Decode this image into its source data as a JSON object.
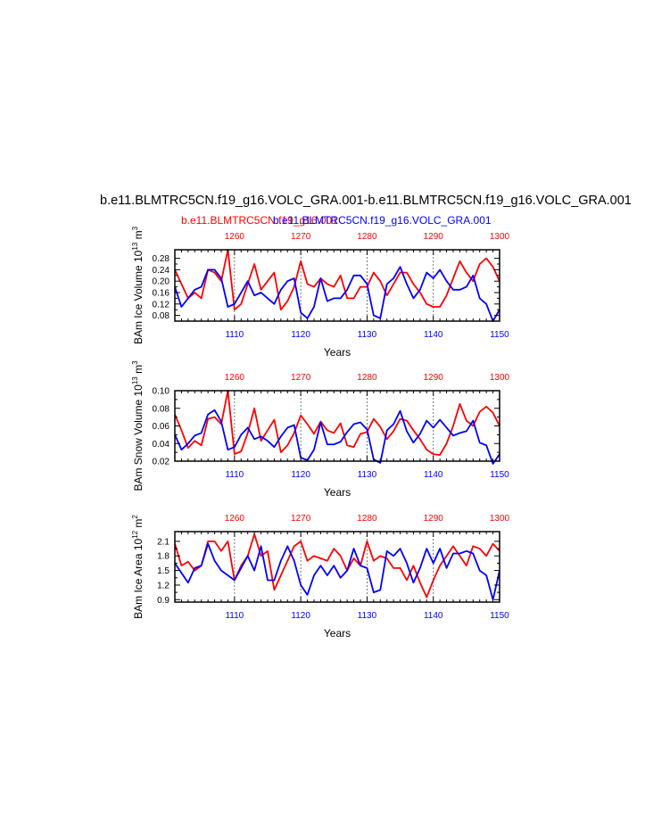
{
  "title": "b.e11.BLMTRC5CN.f19_g16.VOLC_GRA.001-b.e11.BLMTRC5CN.f19_g16.VOLC_GRA.001",
  "subtitle_red": "b.e11.BLMTRC5CN.f19_g16.001",
  "subtitle_blue": "b.e11.BLMTRC5CN.f19_g16.VOLC_GRA.001",
  "colors": {
    "red": "#ff0000",
    "blue": "#0000ff",
    "axis": "#000000"
  },
  "chart_data": [
    {
      "type": "line",
      "ylabel": "BAm Ice Volume 10",
      "ylabel_sup": "13",
      "ylabel_unit": " m",
      "ylabel_unit_sup": "3",
      "xlabel": "Years",
      "xlim": [
        1101,
        1150
      ],
      "ylim": [
        0.06,
        0.31
      ],
      "yticks": [
        0.08,
        0.12,
        0.16,
        0.2,
        0.24,
        0.28
      ],
      "ytick_labels": [
        "0.08",
        "0.12",
        "0.16",
        "0.20",
        "0.24",
        "0.28"
      ],
      "xticks_bottom": [
        1110,
        1120,
        1130,
        1140,
        1150
      ],
      "xticks_bottom_labels": [
        "1110",
        "1120",
        "1130",
        "1140",
        "1150"
      ],
      "xticks_top_labels": [
        "1260",
        "1270",
        "1280",
        "1290",
        "1300"
      ],
      "series": [
        {
          "color": "red",
          "x_start": 1101,
          "values": [
            0.24,
            0.19,
            0.14,
            0.16,
            0.14,
            0.24,
            0.23,
            0.2,
            0.31,
            0.1,
            0.12,
            0.19,
            0.26,
            0.17,
            0.2,
            0.23,
            0.1,
            0.13,
            0.18,
            0.27,
            0.19,
            0.18,
            0.21,
            0.19,
            0.18,
            0.22,
            0.14,
            0.14,
            0.18,
            0.18,
            0.23,
            0.2,
            0.15,
            0.19,
            0.23,
            0.23,
            0.19,
            0.16,
            0.12,
            0.11,
            0.11,
            0.15,
            0.21,
            0.27,
            0.23,
            0.2,
            0.26,
            0.28,
            0.25,
            0.2
          ]
        },
        {
          "color": "blue",
          "x_start": 1101,
          "values": [
            0.18,
            0.11,
            0.14,
            0.17,
            0.18,
            0.24,
            0.24,
            0.21,
            0.11,
            0.12,
            0.16,
            0.2,
            0.15,
            0.16,
            0.14,
            0.12,
            0.17,
            0.2,
            0.21,
            0.09,
            0.07,
            0.11,
            0.21,
            0.13,
            0.14,
            0.14,
            0.17,
            0.22,
            0.22,
            0.19,
            0.08,
            0.07,
            0.19,
            0.21,
            0.25,
            0.19,
            0.14,
            0.17,
            0.23,
            0.21,
            0.24,
            0.2,
            0.17,
            0.17,
            0.18,
            0.22,
            0.14,
            0.12,
            0.06,
            0.1
          ]
        }
      ]
    },
    {
      "type": "line",
      "ylabel": "BAm Snow Volume 10",
      "ylabel_sup": "13",
      "ylabel_unit": " m",
      "ylabel_unit_sup": "3",
      "xlabel": "Years",
      "xlim": [
        1101,
        1150
      ],
      "ylim": [
        0.02,
        0.1
      ],
      "yticks": [
        0.02,
        0.04,
        0.06,
        0.08,
        0.1
      ],
      "ytick_labels": [
        "0.02",
        "0.04",
        "0.06",
        "0.08",
        "0.10"
      ],
      "xticks_bottom": [
        1110,
        1120,
        1130,
        1140,
        1150
      ],
      "xticks_bottom_labels": [
        "1110",
        "1120",
        "1130",
        "1140",
        "1150"
      ],
      "xticks_top_labels": [
        "1260",
        "1270",
        "1280",
        "1290",
        "1300"
      ],
      "series": [
        {
          "color": "red",
          "x_start": 1101,
          "values": [
            0.073,
            0.055,
            0.035,
            0.043,
            0.038,
            0.068,
            0.07,
            0.062,
            0.1,
            0.028,
            0.031,
            0.052,
            0.08,
            0.043,
            0.055,
            0.067,
            0.03,
            0.038,
            0.052,
            0.072,
            0.062,
            0.051,
            0.065,
            0.055,
            0.052,
            0.063,
            0.038,
            0.036,
            0.051,
            0.053,
            0.068,
            0.059,
            0.045,
            0.054,
            0.068,
            0.066,
            0.055,
            0.045,
            0.033,
            0.028,
            0.027,
            0.04,
            0.06,
            0.085,
            0.066,
            0.06,
            0.076,
            0.082,
            0.075,
            0.06
          ]
        },
        {
          "color": "blue",
          "x_start": 1101,
          "values": [
            0.05,
            0.033,
            0.04,
            0.049,
            0.052,
            0.073,
            0.078,
            0.065,
            0.033,
            0.036,
            0.05,
            0.058,
            0.045,
            0.048,
            0.043,
            0.036,
            0.048,
            0.058,
            0.061,
            0.024,
            0.021,
            0.033,
            0.064,
            0.039,
            0.039,
            0.042,
            0.053,
            0.062,
            0.064,
            0.056,
            0.022,
            0.018,
            0.055,
            0.062,
            0.077,
            0.054,
            0.041,
            0.051,
            0.066,
            0.058,
            0.067,
            0.058,
            0.049,
            0.052,
            0.054,
            0.066,
            0.041,
            0.038,
            0.017,
            0.028
          ]
        }
      ]
    },
    {
      "type": "line",
      "ylabel": "BAm Ice Area 10",
      "ylabel_sup": "12",
      "ylabel_unit": " m",
      "ylabel_unit_sup": "2",
      "xlabel": "Years",
      "xlim": [
        1101,
        1150
      ],
      "ylim": [
        0.85,
        2.3
      ],
      "yticks": [
        0.9,
        1.2,
        1.5,
        1.8,
        2.1
      ],
      "ytick_labels": [
        "0.9",
        "1.2",
        "1.5",
        "1.8",
        "2.1"
      ],
      "xticks_bottom": [
        1110,
        1120,
        1130,
        1140,
        1150
      ],
      "xticks_bottom_labels": [
        "1110",
        "1120",
        "1130",
        "1140",
        "1150"
      ],
      "xticks_top_labels": [
        "1260",
        "1270",
        "1280",
        "1290",
        "1300"
      ],
      "series": [
        {
          "color": "red",
          "x_start": 1101,
          "values": [
            2.05,
            1.6,
            1.68,
            1.5,
            1.6,
            2.1,
            2.1,
            1.9,
            2.1,
            1.3,
            1.6,
            1.8,
            2.25,
            1.8,
            1.9,
            1.1,
            1.4,
            1.7,
            2.0,
            2.1,
            1.7,
            1.8,
            1.75,
            1.7,
            1.95,
            1.8,
            1.5,
            1.75,
            1.6,
            2.1,
            1.7,
            1.8,
            1.75,
            1.55,
            1.55,
            1.3,
            1.6,
            1.25,
            0.95,
            1.3,
            1.6,
            1.8,
            2.0,
            1.8,
            1.6,
            2.0,
            1.95,
            1.8,
            2.05,
            1.9
          ]
        },
        {
          "color": "blue",
          "x_start": 1101,
          "values": [
            1.65,
            1.45,
            1.25,
            1.55,
            1.6,
            2.05,
            1.7,
            1.5,
            1.4,
            1.3,
            1.55,
            1.8,
            1.5,
            2.0,
            1.3,
            1.3,
            1.7,
            2.0,
            1.7,
            1.2,
            1.0,
            1.4,
            1.6,
            1.4,
            1.6,
            1.35,
            1.5,
            1.95,
            1.6,
            1.55,
            1.05,
            1.1,
            1.9,
            1.8,
            1.95,
            1.65,
            1.25,
            1.55,
            1.95,
            1.65,
            1.95,
            1.55,
            1.85,
            1.85,
            1.9,
            1.85,
            1.5,
            1.4,
            0.9,
            1.5
          ]
        }
      ]
    }
  ]
}
